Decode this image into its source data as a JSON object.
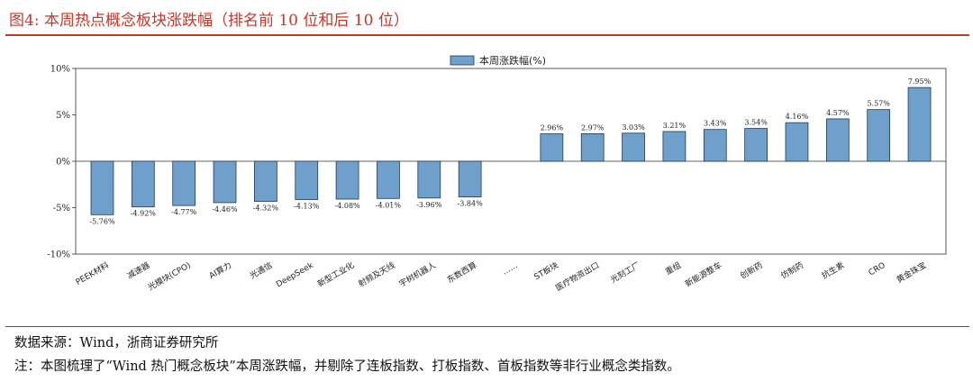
{
  "header": {
    "title": "图4:   本周热点概念板块涨跌幅（排名前 10 位和后 10 位）"
  },
  "footer": {
    "source": "数据来源：Wind，浙商证券研究所",
    "note": "注：本图梳理了“Wind 热门概念板块”本周涨跌幅，并剔除了连板指数、打板指数、首板指数等非行业概念类指数。"
  },
  "chart_data": {
    "type": "bar",
    "legend_position": "top-center",
    "grid": false,
    "bar_color": "#6fa0cc",
    "bar_edge_color": "#1f3a57",
    "series": [
      {
        "name": "本周涨跌幅(%)"
      }
    ],
    "categories": [
      "PEEK材料",
      "减速器",
      "光模块(CPO)",
      "AI算力",
      "光通信",
      "DeepSeek",
      "新型工业化",
      "射频及天线",
      "宇树机器人",
      "东数西算",
      "……",
      "ST板块",
      "医疗物资出口",
      "光刻工厂",
      "重组",
      "新能源整车",
      "创新药",
      "仿制药",
      "抗生素",
      "CRO",
      "黄金珠宝"
    ],
    "values": [
      -5.76,
      -4.92,
      -4.77,
      -4.46,
      -4.32,
      -4.13,
      -4.08,
      -4.01,
      -3.96,
      -3.84,
      null,
      2.96,
      2.97,
      3.03,
      3.21,
      3.43,
      3.54,
      4.16,
      4.57,
      5.57,
      7.95
    ],
    "value_labels": [
      "-5.76%",
      "-4.92%",
      "-4.77%",
      "-4.46%",
      "-4.32%",
      "-4.13%",
      "-4.08%",
      "-4.01%",
      "-3.96%",
      "-3.84%",
      "",
      "2.96%",
      "2.97%",
      "3.03%",
      "3.21%",
      "3.43%",
      "3.54%",
      "4.16%",
      "4.57%",
      "5.57%",
      "7.95%"
    ],
    "ylim": [
      -10,
      10
    ],
    "yticks": [
      10,
      5,
      0,
      -5,
      -10
    ],
    "ytick_labels": [
      "10%",
      "5%",
      "0%",
      "-5%",
      "-10%"
    ]
  }
}
